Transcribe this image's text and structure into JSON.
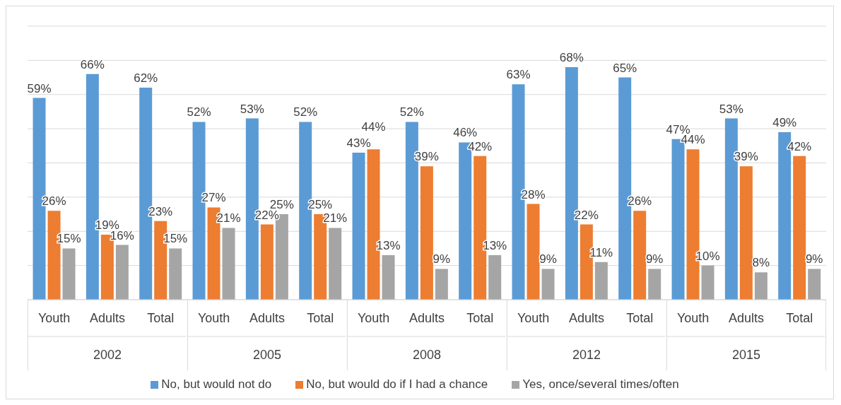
{
  "chart_data": {
    "type": "bar",
    "categories": [
      "Youth",
      "Adults",
      "Total",
      "Youth",
      "Adults",
      "Total",
      "Youth",
      "Adults",
      "Total",
      "Youth",
      "Adults",
      "Total",
      "Youth",
      "Adults",
      "Total"
    ],
    "annotations": [
      "2002",
      "2005",
      "2008",
      "2012",
      "2015"
    ],
    "series": [
      {
        "name": "No, but would not do",
        "color": "#5b9bd5",
        "values": [
          59,
          66,
          62,
          52,
          53,
          52,
          43,
          52,
          46,
          63,
          68,
          65,
          47,
          53,
          49
        ],
        "value_labels": [
          "59%",
          "66%",
          "62%",
          "52%",
          "53%",
          "52%",
          "43%",
          "52%",
          "46%",
          "63%",
          "68%",
          "65%",
          "47%",
          "53%",
          "49%"
        ]
      },
      {
        "name": "No, but would do if I had a chance",
        "color": "#ed7d31",
        "values": [
          26,
          19,
          23,
          27,
          22,
          25,
          44,
          39,
          42,
          28,
          22,
          26,
          44,
          39,
          42
        ],
        "value_labels": [
          "26%",
          "19%",
          "23%",
          "27%",
          "22%",
          "25%",
          "44%",
          "39%",
          "42%",
          "28%",
          "22%",
          "26%",
          "44%",
          "39%",
          "42%"
        ]
      },
      {
        "name": "Yes, once/several times/often",
        "color": "#a5a5a5",
        "values": [
          15,
          16,
          15,
          21,
          25,
          21,
          13,
          9,
          13,
          9,
          11,
          9,
          10,
          8,
          9
        ],
        "value_labels": [
          "15%",
          "16%",
          "15%",
          "21%",
          "25%",
          "21%",
          "13%",
          "9%",
          "13%",
          "9%",
          "11%",
          "9%",
          "10%",
          "8%",
          "9%"
        ]
      }
    ],
    "ylim": [
      0,
      80
    ],
    "yticks": [
      0,
      10,
      20,
      30,
      40,
      50,
      60,
      70,
      80
    ],
    "tick_labels": "x",
    "grid": "y",
    "legend": "bottom"
  }
}
